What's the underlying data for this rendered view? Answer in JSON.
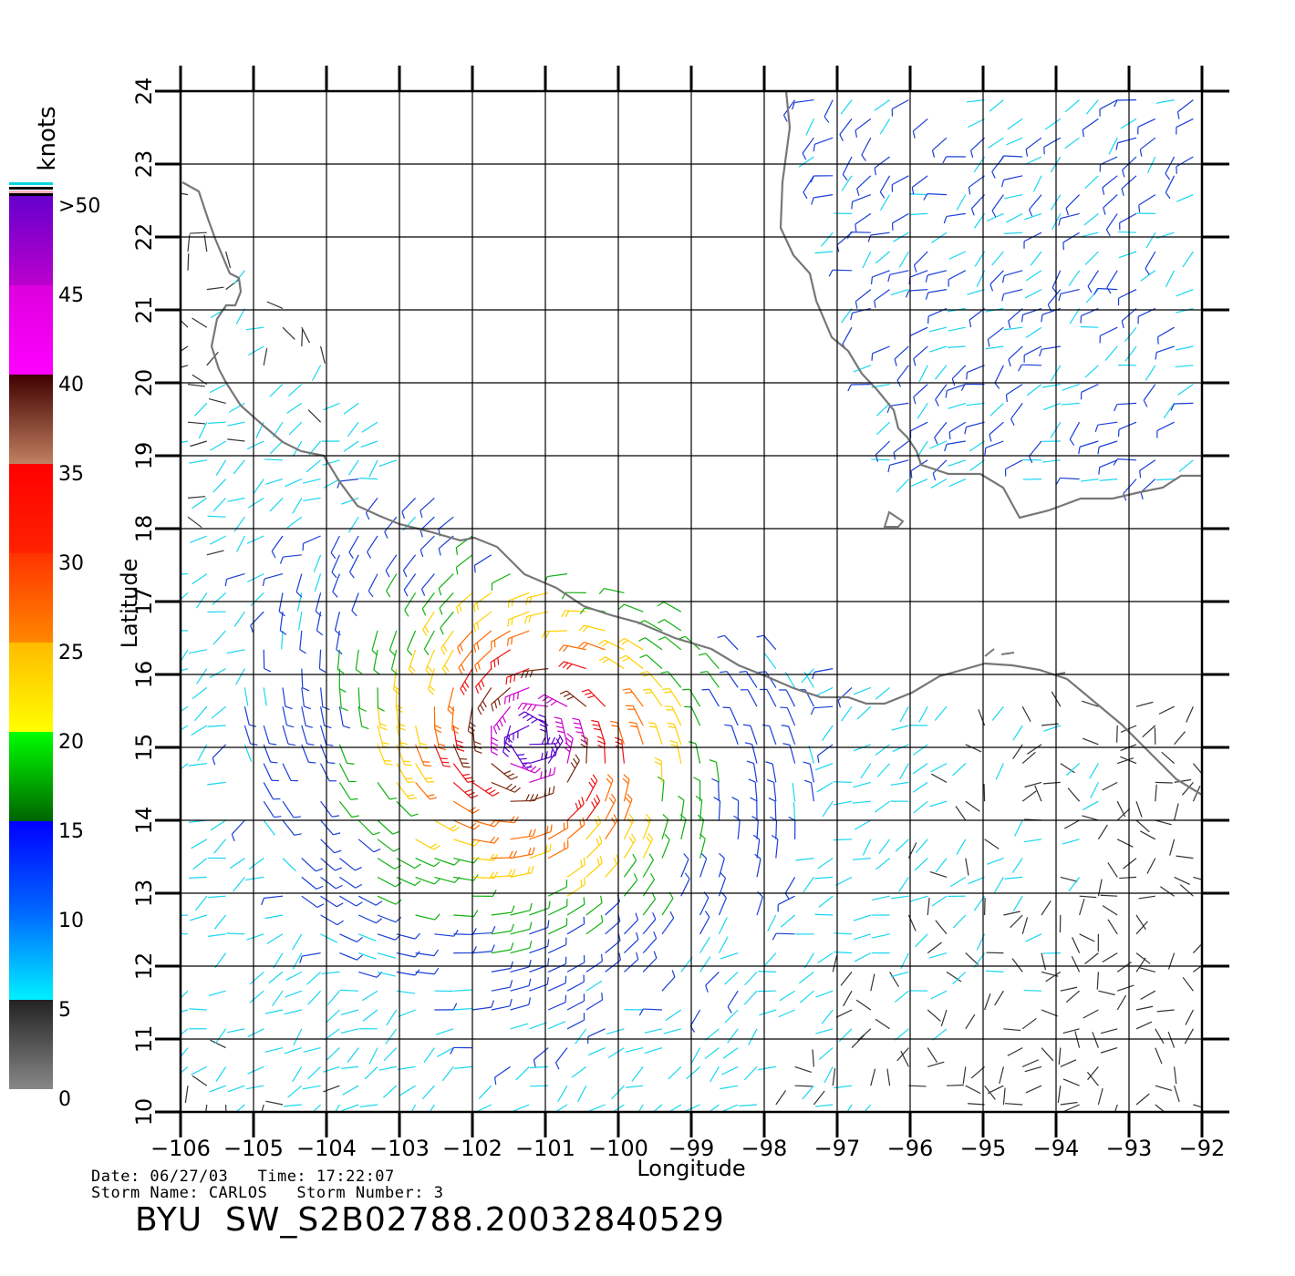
{
  "chart_data": {
    "type": "wind-vector-map",
    "xlabel": "Longitude",
    "ylabel": "Latitude",
    "xlim": [
      -106,
      -92
    ],
    "ylim": [
      10,
      24
    ],
    "grid": true,
    "x_ticks": [
      -106,
      -105,
      -104,
      -103,
      -102,
      -101,
      -100,
      -99,
      -98,
      -97,
      -96,
      -95,
      -94,
      -93,
      -92
    ],
    "y_ticks": [
      10,
      11,
      12,
      13,
      14,
      15,
      16,
      17,
      18,
      19,
      20,
      21,
      22,
      23,
      24
    ],
    "x_tick_labels": [
      "−106",
      "−105",
      "−104",
      "−103",
      "−102",
      "−101",
      "−100",
      "−99",
      "−98",
      "−97",
      "−96",
      "−95",
      "−94",
      "−93",
      "−92"
    ],
    "y_tick_labels": [
      "10",
      "11",
      "12",
      "13",
      "14",
      "15",
      "16",
      "17",
      "18",
      "19",
      "20",
      "21",
      "22",
      "23",
      "24"
    ],
    "colorbar": {
      "unit": "knots",
      "labels": [
        "0",
        "5",
        "10",
        "15",
        "20",
        "25",
        "30",
        "35",
        "40",
        "45",
        ">50"
      ],
      "bands": [
        {
          "min": 0,
          "max": 5,
          "colors": [
            "#888888",
            "#222222"
          ]
        },
        {
          "min": 5,
          "max": 10,
          "colors": [
            "#00f0ff",
            "#0066ff"
          ]
        },
        {
          "min": 10,
          "max": 15,
          "colors": [
            "#0066ff",
            "#0000ff"
          ]
        },
        {
          "min": 15,
          "max": 20,
          "colors": [
            "#006400",
            "#00ff00"
          ]
        },
        {
          "min": 20,
          "max": 25,
          "colors": [
            "#ffff00",
            "#ffbb00"
          ]
        },
        {
          "min": 25,
          "max": 30,
          "colors": [
            "#ff8800",
            "#ff3300"
          ]
        },
        {
          "min": 30,
          "max": 35,
          "colors": [
            "#ff2200",
            "#ff0000"
          ]
        },
        {
          "min": 35,
          "max": 40,
          "colors": [
            "#c08060",
            "#400000"
          ]
        },
        {
          "min": 40,
          "max": 45,
          "colors": [
            "#ff00ff",
            "#dd00dd"
          ]
        },
        {
          "min": 45,
          "max": 50,
          "colors": [
            "#bb00cc",
            "#6600cc"
          ]
        }
      ]
    },
    "wind_field": {
      "storm": "CARLOS",
      "center": [
        -101.2,
        15.1
      ],
      "peak_speed_kt": 50,
      "speed_colors": [
        {
          "max": 5,
          "color": "#333333"
        },
        {
          "max": 10,
          "color": "#18d6f0"
        },
        {
          "max": 15,
          "color": "#1a3fd6"
        },
        {
          "max": 20,
          "color": "#10b010"
        },
        {
          "max": 25,
          "color": "#ffd000"
        },
        {
          "max": 30,
          "color": "#ff6a00"
        },
        {
          "max": 35,
          "color": "#ee1111"
        },
        {
          "max": 40,
          "color": "#7a2a10"
        },
        {
          "max": 45,
          "color": "#cc00cc"
        },
        {
          "max": 99,
          "color": "#5500cc"
        }
      ]
    }
  },
  "info": {
    "date_line": "Date: 06/27/03   Time: 17:22:07",
    "storm_line": "Storm Name: CARLOS   Storm Number: 3",
    "title": "BYU  SW_S2B02788.20032840529"
  }
}
